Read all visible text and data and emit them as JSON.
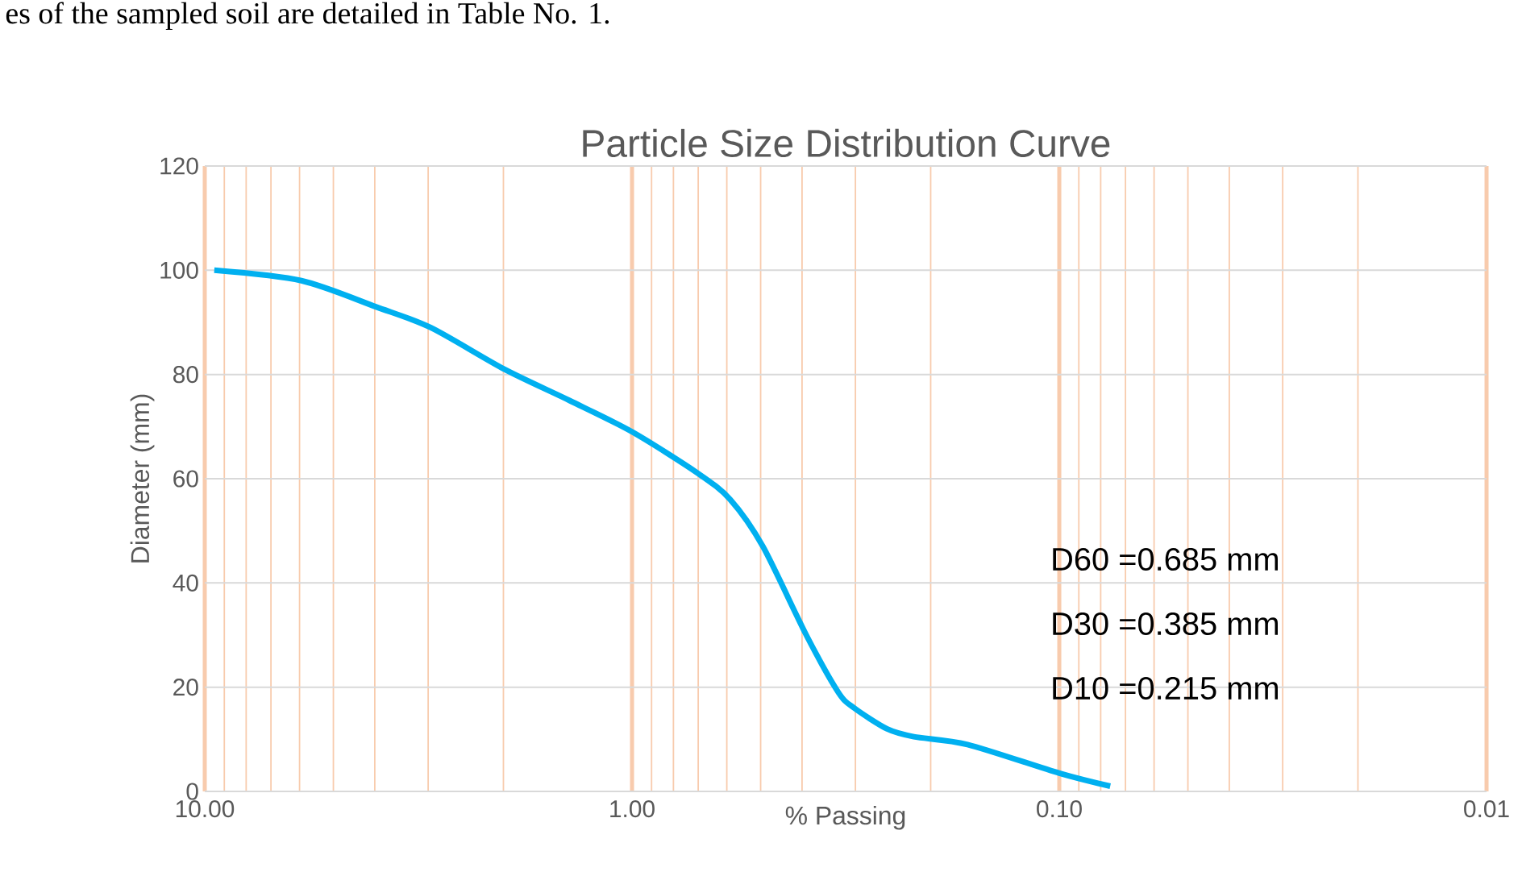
{
  "chart_data": {
    "type": "line",
    "title": "Particle Size Distribution Curve",
    "xlabel": "% Passing",
    "ylabel": "Diameter (mm)",
    "x": [
      9.5,
      5.94,
      3.98,
      2.96,
      1.99,
      1.4,
      1.0,
      0.7,
      0.589,
      0.494,
      0.391,
      0.329,
      0.302,
      0.253,
      0.219,
      0.164,
      0.1,
      0.076
    ],
    "series": [
      {
        "color": "#00b0f0",
        "values": [
          100,
          98,
          93,
          89,
          81,
          75,
          69,
          61,
          56,
          47,
          30,
          19,
          16,
          12,
          10.5,
          9,
          3.5,
          1
        ]
      }
    ],
    "log": "x",
    "xlim": [
      10,
      0.01
    ],
    "xticks": [
      {
        "value": 10,
        "label": "10.00"
      },
      {
        "value": 9,
        "label": null
      },
      {
        "value": 8,
        "label": null
      },
      {
        "value": 7,
        "label": null
      },
      {
        "value": 6,
        "label": null
      },
      {
        "value": 5,
        "label": null
      },
      {
        "value": 4,
        "label": null
      },
      {
        "value": 3,
        "label": null
      },
      {
        "value": 2,
        "label": null
      },
      {
        "value": 1,
        "label": "1.00"
      },
      {
        "value": 0.9,
        "label": null
      },
      {
        "value": 0.8,
        "label": null
      },
      {
        "value": 0.7,
        "label": null
      },
      {
        "value": 0.6,
        "label": null
      },
      {
        "value": 0.5,
        "label": null
      },
      {
        "value": 0.4,
        "label": null
      },
      {
        "value": 0.3,
        "label": null
      },
      {
        "value": 0.2,
        "label": null
      },
      {
        "value": 0.1,
        "label": "0.10"
      },
      {
        "value": 0.09,
        "label": null
      },
      {
        "value": 0.08,
        "label": null
      },
      {
        "value": 0.07,
        "label": null
      },
      {
        "value": 0.06,
        "label": null
      },
      {
        "value": 0.05,
        "label": null
      },
      {
        "value": 0.04,
        "label": null
      },
      {
        "value": 0.03,
        "label": null
      },
      {
        "value": 0.02,
        "label": null
      },
      {
        "value": 0.01,
        "label": "0.01"
      }
    ],
    "ylim": [
      0,
      120
    ],
    "yticks": [
      0,
      20,
      40,
      60,
      80,
      100,
      120
    ],
    "grid": true,
    "marker": "none",
    "line_style": "solid",
    "annotations": [
      "D60 =0.685 mm",
      "D30 =0.385 mm",
      "D10 =0.215 mm",
      "es of the sampled soil are detailed in Table No. 1."
    ]
  }
}
